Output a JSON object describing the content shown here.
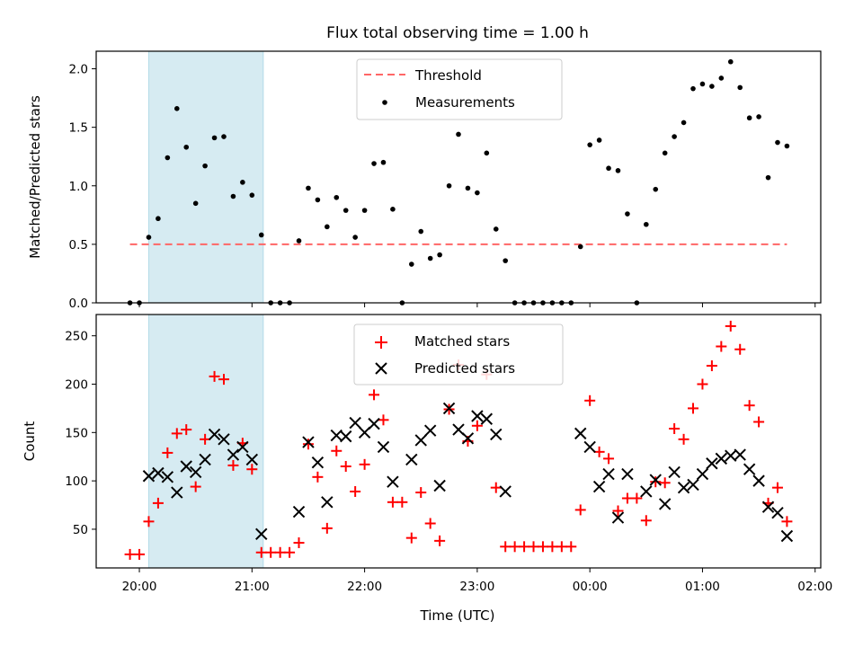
{
  "chart_data": [
    {
      "type": "scatter",
      "title": "Flux total observing time = 1.00 h",
      "xlabel": "",
      "ylabel": "Matched/Predicted stars",
      "ylim": [
        0,
        2.15
      ],
      "yticks": [
        "0.0",
        "0.5",
        "1.0",
        "1.5",
        "2.0"
      ],
      "xlim": [
        "19:37",
        "02:03"
      ],
      "shaded_interval": [
        "20:05",
        "21:06"
      ],
      "shade_color": "#add8e6",
      "legend": {
        "placement": "top-center",
        "entries": [
          "Threshold",
          "Measurements"
        ]
      },
      "threshold": {
        "name": "Threshold",
        "value": 0.5,
        "x_start": "19:55",
        "x_end": "01:45",
        "color": "#ff6666"
      },
      "series": [
        {
          "name": "Measurements",
          "color": "#000000",
          "points": [
            [
              "19:55",
              0.0
            ],
            [
              "20:00",
              0.0
            ],
            [
              "20:05",
              0.56
            ],
            [
              "20:10",
              0.72
            ],
            [
              "20:15",
              1.24
            ],
            [
              "20:20",
              1.66
            ],
            [
              "20:25",
              1.33
            ],
            [
              "20:30",
              0.85
            ],
            [
              "20:35",
              1.17
            ],
            [
              "20:40",
              1.41
            ],
            [
              "20:45",
              1.42
            ],
            [
              "20:50",
              0.91
            ],
            [
              "20:55",
              1.03
            ],
            [
              "21:00",
              0.92
            ],
            [
              "21:05",
              0.58
            ],
            [
              "21:10",
              0.0
            ],
            [
              "21:15",
              0.0
            ],
            [
              "21:20",
              0.0
            ],
            [
              "21:25",
              0.53
            ],
            [
              "21:30",
              0.98
            ],
            [
              "21:35",
              0.88
            ],
            [
              "21:40",
              0.65
            ],
            [
              "21:45",
              0.9
            ],
            [
              "21:50",
              0.79
            ],
            [
              "21:55",
              0.56
            ],
            [
              "22:00",
              0.79
            ],
            [
              "22:05",
              1.19
            ],
            [
              "22:10",
              1.2
            ],
            [
              "22:15",
              0.8
            ],
            [
              "22:20",
              0.0
            ],
            [
              "22:25",
              0.33
            ],
            [
              "22:30",
              0.61
            ],
            [
              "22:35",
              0.38
            ],
            [
              "22:40",
              0.41
            ],
            [
              "22:45",
              1.0
            ],
            [
              "22:50",
              1.44
            ],
            [
              "22:55",
              0.98
            ],
            [
              "23:00",
              0.94
            ],
            [
              "23:05",
              1.28
            ],
            [
              "23:10",
              0.63
            ],
            [
              "23:15",
              0.36
            ],
            [
              "23:20",
              0.0
            ],
            [
              "23:25",
              0.0
            ],
            [
              "23:30",
              0.0
            ],
            [
              "23:35",
              0.0
            ],
            [
              "23:40",
              0.0
            ],
            [
              "23:45",
              0.0
            ],
            [
              "23:50",
              0.0
            ],
            [
              "23:55",
              0.48
            ],
            [
              "00:00",
              1.35
            ],
            [
              "00:05",
              1.39
            ],
            [
              "00:10",
              1.15
            ],
            [
              "00:15",
              1.13
            ],
            [
              "00:20",
              0.76
            ],
            [
              "00:25",
              0.0
            ],
            [
              "00:30",
              0.67
            ],
            [
              "00:35",
              0.97
            ],
            [
              "00:40",
              1.28
            ],
            [
              "00:45",
              1.42
            ],
            [
              "00:50",
              1.54
            ],
            [
              "00:55",
              1.83
            ],
            [
              "01:00",
              1.87
            ],
            [
              "01:05",
              1.85
            ],
            [
              "01:10",
              1.92
            ],
            [
              "01:15",
              2.06
            ],
            [
              "01:20",
              1.84
            ],
            [
              "01:25",
              1.58
            ],
            [
              "01:30",
              1.59
            ],
            [
              "01:35",
              1.07
            ],
            [
              "01:40",
              1.37
            ],
            [
              "01:45",
              1.34
            ]
          ]
        }
      ]
    },
    {
      "type": "scatter",
      "title": "",
      "xlabel": "Time (UTC)",
      "ylabel": "Count",
      "ylim": [
        10,
        272
      ],
      "yticks": [
        "50",
        "100",
        "150",
        "200",
        "250"
      ],
      "xlim": [
        "19:37",
        "02:03"
      ],
      "xticks": [
        "20:00",
        "21:00",
        "22:00",
        "23:00",
        "00:00",
        "01:00",
        "02:00"
      ],
      "shaded_interval": [
        "20:05",
        "21:06"
      ],
      "shade_color": "#add8e6",
      "legend": {
        "placement": "top-center",
        "entries": [
          "Matched stars",
          "Predicted stars"
        ]
      },
      "series": [
        {
          "name": "Matched stars",
          "marker": "plus",
          "color": "#ff0000",
          "points": [
            [
              "19:55",
              24
            ],
            [
              "20:00",
              24
            ],
            [
              "20:05",
              58
            ],
            [
              "20:10",
              77
            ],
            [
              "20:15",
              129
            ],
            [
              "20:20",
              149
            ],
            [
              "20:25",
              153
            ],
            [
              "20:30",
              94
            ],
            [
              "20:35",
              143
            ],
            [
              "20:40",
              208
            ],
            [
              "20:45",
              205
            ],
            [
              "20:50",
              116
            ],
            [
              "20:55",
              139
            ],
            [
              "21:00",
              112
            ],
            [
              "21:05",
              26
            ],
            [
              "21:10",
              26
            ],
            [
              "21:15",
              26
            ],
            [
              "21:20",
              26
            ],
            [
              "21:25",
              36
            ],
            [
              "21:30",
              138
            ],
            [
              "21:35",
              104
            ],
            [
              "21:40",
              51
            ],
            [
              "21:45",
              131
            ],
            [
              "21:50",
              115
            ],
            [
              "21:55",
              89
            ],
            [
              "22:00",
              117
            ],
            [
              "22:05",
              189
            ],
            [
              "22:10",
              163
            ],
            [
              "22:15",
              78
            ],
            [
              "22:20",
              78
            ],
            [
              "22:25",
              41
            ],
            [
              "22:30",
              88
            ],
            [
              "22:35",
              56
            ],
            [
              "22:40",
              38
            ],
            [
              "22:45",
              174
            ],
            [
              "22:50",
              220
            ],
            [
              "22:55",
              141
            ],
            [
              "23:00",
              157
            ],
            [
              "23:05",
              210
            ],
            [
              "23:10",
              93
            ],
            [
              "23:15",
              32
            ],
            [
              "23:20",
              32
            ],
            [
              "23:25",
              32
            ],
            [
              "23:30",
              32
            ],
            [
              "23:35",
              32
            ],
            [
              "23:40",
              32
            ],
            [
              "23:45",
              32
            ],
            [
              "23:50",
              32
            ],
            [
              "23:55",
              70
            ],
            [
              "00:00",
              183
            ],
            [
              "00:05",
              130
            ],
            [
              "00:10",
              123
            ],
            [
              "00:15",
              69
            ],
            [
              "00:20",
              82
            ],
            [
              "00:25",
              82
            ],
            [
              "00:30",
              59
            ],
            [
              "00:35",
              99
            ],
            [
              "00:40",
              98
            ],
            [
              "00:45",
              154
            ],
            [
              "00:50",
              143
            ],
            [
              "00:55",
              175
            ],
            [
              "01:00",
              200
            ],
            [
              "01:05",
              219
            ],
            [
              "01:10",
              239
            ],
            [
              "01:15",
              260
            ],
            [
              "01:20",
              236
            ],
            [
              "01:25",
              178
            ],
            [
              "01:30",
              161
            ],
            [
              "01:35",
              77
            ],
            [
              "01:40",
              93
            ],
            [
              "01:45",
              58
            ]
          ]
        },
        {
          "name": "Predicted stars",
          "marker": "x",
          "color": "#000000",
          "points": [
            [
              "20:05",
              105
            ],
            [
              "20:10",
              108
            ],
            [
              "20:15",
              104
            ],
            [
              "20:20",
              88
            ],
            [
              "20:25",
              115
            ],
            [
              "20:30",
              109
            ],
            [
              "20:35",
              122
            ],
            [
              "20:40",
              148
            ],
            [
              "20:45",
              143
            ],
            [
              "20:50",
              127
            ],
            [
              "20:55",
              135
            ],
            [
              "21:00",
              122
            ],
            [
              "21:05",
              45
            ],
            [
              "21:25",
              68
            ],
            [
              "21:30",
              140
            ],
            [
              "21:35",
              119
            ],
            [
              "21:40",
              78
            ],
            [
              "21:45",
              147
            ],
            [
              "21:50",
              146
            ],
            [
              "21:55",
              160
            ],
            [
              "22:00",
              150
            ],
            [
              "22:05",
              159
            ],
            [
              "22:10",
              135
            ],
            [
              "22:15",
              99
            ],
            [
              "22:25",
              122
            ],
            [
              "22:30",
              142
            ],
            [
              "22:35",
              152
            ],
            [
              "22:40",
              95
            ],
            [
              "22:45",
              175
            ],
            [
              "22:50",
              153
            ],
            [
              "22:55",
              144
            ],
            [
              "23:00",
              167
            ],
            [
              "23:05",
              164
            ],
            [
              "23:10",
              148
            ],
            [
              "23:15",
              89
            ],
            [
              "23:55",
              149
            ],
            [
              "00:00",
              135
            ],
            [
              "00:05",
              94
            ],
            [
              "00:10",
              107
            ],
            [
              "00:15",
              62
            ],
            [
              "00:20",
              107
            ],
            [
              "00:30",
              89
            ],
            [
              "00:35",
              101
            ],
            [
              "00:40",
              76
            ],
            [
              "00:45",
              109
            ],
            [
              "00:50",
              93
            ],
            [
              "00:55",
              96
            ],
            [
              "01:00",
              107
            ],
            [
              "01:05",
              118
            ],
            [
              "01:10",
              123
            ],
            [
              "01:15",
              126
            ],
            [
              "01:20",
              127
            ],
            [
              "01:25",
              112
            ],
            [
              "01:30",
              100
            ],
            [
              "01:35",
              73
            ],
            [
              "01:40",
              67
            ],
            [
              "01:45",
              43
            ]
          ]
        }
      ]
    }
  ]
}
